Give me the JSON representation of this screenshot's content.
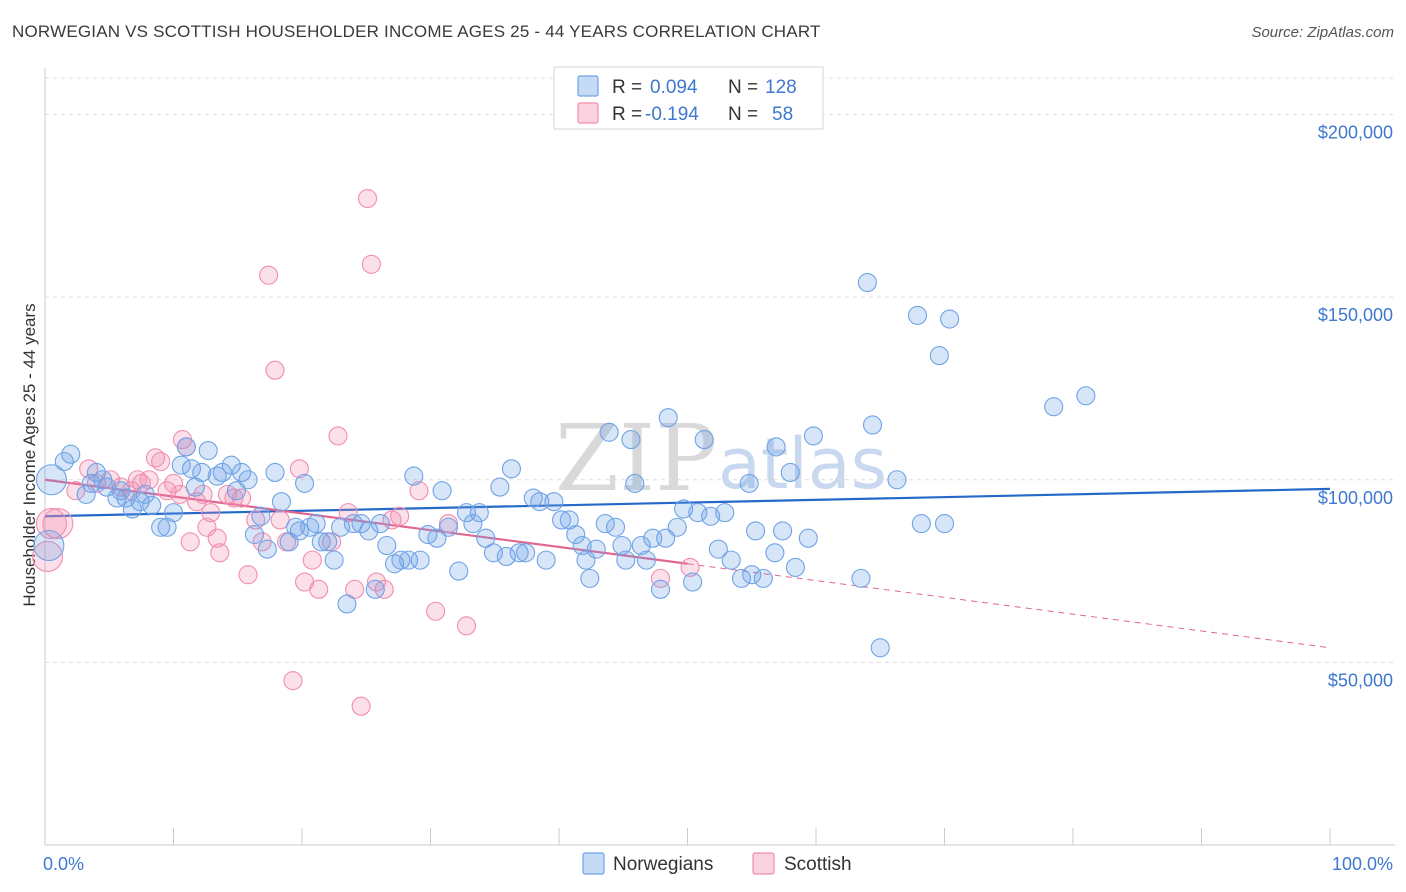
{
  "title": "NORWEGIAN VS SCOTTISH HOUSEHOLDER INCOME AGES 25 - 44 YEARS CORRELATION CHART",
  "source": "Source: ZipAtlas.com",
  "watermark": {
    "zip": "ZIP",
    "atlas": "atlas"
  },
  "colors": {
    "norwegians": "#6fa3e6",
    "scottish": "#f28db0",
    "norwegians_line": "#2469c9",
    "scottish_line": "#e0668f",
    "tick": "#3e78d0"
  },
  "legend": {
    "rows": [
      {
        "r_label": "R =",
        "r_value": "0.094",
        "n_label": "N =",
        "n_value": "128"
      },
      {
        "r_label": "R =",
        "r_value": "-0.194",
        "n_label": "N =",
        "n_value": "58"
      }
    ]
  },
  "bottom_legend": {
    "norwegians": "Norwegians",
    "scottish": "Scottish"
  },
  "chart_data": {
    "type": "scatter",
    "title": "NORWEGIAN VS SCOTTISH HOUSEHOLDER INCOME AGES 25 - 44 YEARS CORRELATION CHART",
    "xlabel": "",
    "ylabel": "Householder Income Ages 25 - 44 years",
    "xlim": [
      0,
      100
    ],
    "ylim": [
      0,
      210000
    ],
    "x_tick_labels": [
      "0.0%",
      "100.0%"
    ],
    "y_ticks": [
      50000,
      100000,
      150000,
      200000
    ],
    "y_tick_labels": [
      "$50,000",
      "$100,000",
      "$150,000",
      "$200,000"
    ],
    "series": [
      {
        "name": "Norwegians",
        "R": 0.094,
        "N": 128,
        "trend": {
          "x": [
            0,
            100
          ],
          "y": [
            90000,
            97500
          ]
        },
        "points": [
          [
            0.3,
            82000
          ],
          [
            0.5,
            100000
          ],
          [
            1.5,
            105000
          ],
          [
            2,
            107000
          ],
          [
            3.2,
            96000
          ],
          [
            3.6,
            99000
          ],
          [
            4,
            102000
          ],
          [
            4.5,
            100000
          ],
          [
            4.8,
            98000
          ],
          [
            5.6,
            95000
          ],
          [
            5.9,
            97000
          ],
          [
            6.3,
            95000
          ],
          [
            6.8,
            92000
          ],
          [
            7.4,
            94000
          ],
          [
            7.8,
            96000
          ],
          [
            8.3,
            93000
          ],
          [
            9,
            87000
          ],
          [
            9.5,
            87000
          ],
          [
            10,
            91000
          ],
          [
            10.6,
            104000
          ],
          [
            11,
            109000
          ],
          [
            11.4,
            103000
          ],
          [
            11.7,
            98000
          ],
          [
            12.2,
            102000
          ],
          [
            12.7,
            108000
          ],
          [
            13.4,
            101000
          ],
          [
            13.8,
            102000
          ],
          [
            14.5,
            104000
          ],
          [
            14.9,
            97000
          ],
          [
            15.3,
            102000
          ],
          [
            15.8,
            100000
          ],
          [
            16.3,
            85000
          ],
          [
            16.8,
            90000
          ],
          [
            17.3,
            81000
          ],
          [
            17.9,
            102000
          ],
          [
            18.4,
            94000
          ],
          [
            19,
            83000
          ],
          [
            19.5,
            87000
          ],
          [
            19.8,
            86000
          ],
          [
            20.2,
            99000
          ],
          [
            20.6,
            87000
          ],
          [
            21.1,
            88000
          ],
          [
            21.5,
            83000
          ],
          [
            22,
            83000
          ],
          [
            22.5,
            78000
          ],
          [
            23,
            87000
          ],
          [
            23.5,
            66000
          ],
          [
            24,
            88000
          ],
          [
            24.6,
            88000
          ],
          [
            25.2,
            86000
          ],
          [
            25.7,
            70000
          ],
          [
            26.1,
            88000
          ],
          [
            26.6,
            82000
          ],
          [
            27.2,
            77000
          ],
          [
            27.7,
            78000
          ],
          [
            28.3,
            78000
          ],
          [
            28.7,
            101000
          ],
          [
            29.2,
            78000
          ],
          [
            29.8,
            85000
          ],
          [
            30.5,
            84000
          ],
          [
            30.9,
            97000
          ],
          [
            31.4,
            87000
          ],
          [
            32.2,
            75000
          ],
          [
            32.8,
            91000
          ],
          [
            33.3,
            88000
          ],
          [
            33.8,
            91000
          ],
          [
            34.3,
            84000
          ],
          [
            34.9,
            80000
          ],
          [
            35.4,
            98000
          ],
          [
            35.9,
            79000
          ],
          [
            36.3,
            103000
          ],
          [
            36.9,
            80000
          ],
          [
            37.4,
            80000
          ],
          [
            38,
            95000
          ],
          [
            38.5,
            94000
          ],
          [
            39,
            78000
          ],
          [
            39.6,
            94000
          ],
          [
            40.2,
            89000
          ],
          [
            40.8,
            89000
          ],
          [
            41.3,
            85000
          ],
          [
            41.8,
            82000
          ],
          [
            42.1,
            78000
          ],
          [
            42.4,
            73000
          ],
          [
            42.9,
            81000
          ],
          [
            43.6,
            88000
          ],
          [
            43.9,
            113000
          ],
          [
            44.4,
            87000
          ],
          [
            44.9,
            82000
          ],
          [
            45.2,
            78000
          ],
          [
            45.6,
            111000
          ],
          [
            45.9,
            99000
          ],
          [
            46.4,
            82000
          ],
          [
            46.8,
            78000
          ],
          [
            47.3,
            84000
          ],
          [
            47.9,
            70000
          ],
          [
            48.3,
            84000
          ],
          [
            48.5,
            117000
          ],
          [
            49.2,
            87000
          ],
          [
            49.7,
            92000
          ],
          [
            50.4,
            72000
          ],
          [
            50.8,
            91000
          ],
          [
            51.3,
            111000
          ],
          [
            51.8,
            90000
          ],
          [
            52.4,
            81000
          ],
          [
            52.9,
            91000
          ],
          [
            53.4,
            78000
          ],
          [
            54.2,
            73000
          ],
          [
            54.8,
            99000
          ],
          [
            55,
            74000
          ],
          [
            55.3,
            86000
          ],
          [
            55.9,
            73000
          ],
          [
            56.8,
            80000
          ],
          [
            56.9,
            109000
          ],
          [
            57.4,
            86000
          ],
          [
            58,
            102000
          ],
          [
            58.4,
            76000
          ],
          [
            59.4,
            84000
          ],
          [
            59.8,
            112000
          ],
          [
            63.5,
            73000
          ],
          [
            64,
            154000
          ],
          [
            64.4,
            115000
          ],
          [
            65,
            54000
          ],
          [
            66.3,
            100000
          ],
          [
            67.9,
            145000
          ],
          [
            68.2,
            88000
          ],
          [
            69.6,
            134000
          ],
          [
            70,
            88000
          ],
          [
            70.4,
            144000
          ],
          [
            78.5,
            120000
          ],
          [
            81,
            123000
          ]
        ]
      },
      {
        "name": "Scottish",
        "R": -0.194,
        "N": 58,
        "trend": {
          "x": [
            0,
            50
          ],
          "y": [
            100000,
            77000
          ]
        },
        "trend_dashed": {
          "x": [
            50,
            100
          ],
          "y": [
            77000,
            54000
          ]
        },
        "points": [
          [
            0.2,
            79000
          ],
          [
            1,
            88000
          ],
          [
            2.4,
            97000
          ],
          [
            3.4,
            103000
          ],
          [
            4,
            99000
          ],
          [
            5.1,
            100000
          ],
          [
            5.9,
            98000
          ],
          [
            6.7,
            97000
          ],
          [
            7.2,
            100000
          ],
          [
            7.5,
            99000
          ],
          [
            8.1,
            100000
          ],
          [
            8.6,
            106000
          ],
          [
            9,
            105000
          ],
          [
            9.5,
            97000
          ],
          [
            10,
            99000
          ],
          [
            10.5,
            96000
          ],
          [
            10.7,
            111000
          ],
          [
            11,
            109000
          ],
          [
            11.3,
            83000
          ],
          [
            11.8,
            94000
          ],
          [
            12.3,
            96000
          ],
          [
            12.6,
            87000
          ],
          [
            12.9,
            91000
          ],
          [
            13.4,
            84000
          ],
          [
            13.6,
            80000
          ],
          [
            14.2,
            96000
          ],
          [
            14.7,
            95000
          ],
          [
            15.3,
            95000
          ],
          [
            15.8,
            74000
          ],
          [
            16.4,
            89000
          ],
          [
            16.9,
            83000
          ],
          [
            17.4,
            156000
          ],
          [
            17.9,
            130000
          ],
          [
            18.3,
            89000
          ],
          [
            18.8,
            83000
          ],
          [
            19.3,
            45000
          ],
          [
            19.8,
            103000
          ],
          [
            20.2,
            72000
          ],
          [
            20.8,
            78000
          ],
          [
            21.3,
            70000
          ],
          [
            22.3,
            83000
          ],
          [
            22.8,
            112000
          ],
          [
            23.6,
            91000
          ],
          [
            24.1,
            70000
          ],
          [
            24.6,
            38000
          ],
          [
            25.1,
            177000
          ],
          [
            25.4,
            159000
          ],
          [
            25.8,
            72000
          ],
          [
            26.4,
            70000
          ],
          [
            27,
            89000
          ],
          [
            27.6,
            90000
          ],
          [
            29.1,
            97000
          ],
          [
            30.4,
            64000
          ],
          [
            31.4,
            88000
          ],
          [
            32.8,
            60000
          ],
          [
            47.9,
            73000
          ],
          [
            50.2,
            76000
          ],
          [
            0.5,
            88000
          ]
        ]
      }
    ]
  },
  "axis": {
    "ylabel": "Householder Income Ages 25 - 44 years"
  }
}
